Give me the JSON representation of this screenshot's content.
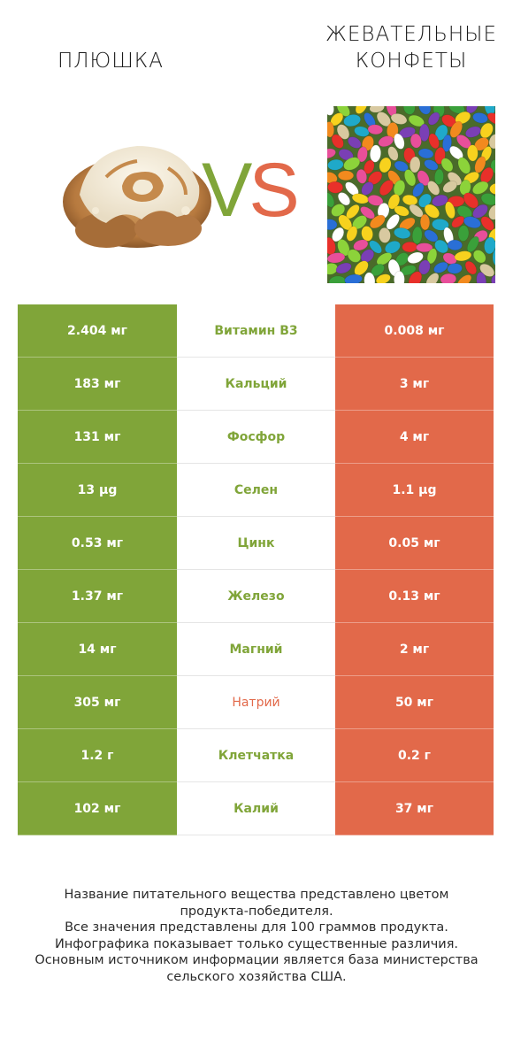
{
  "header": {
    "left_title": "ПЛЮШКА",
    "right_title_line1": "ЖЕВАТЕЛЬНЫЕ",
    "right_title_line2": "КОНФЕТЫ",
    "vs_v": "V",
    "vs_s": "S"
  },
  "colors": {
    "winner_left": "#80a539",
    "winner_right": "#e2694a"
  },
  "chart_data": {
    "type": "table",
    "columns": [
      "ПЛЮШКА",
      "",
      "ЖЕВАТЕЛЬНЫЕ КОНФЕТЫ"
    ],
    "rows": [
      {
        "nutrient": "Витамин B3",
        "left": "2.404 мг",
        "right": "0.008 мг",
        "winner": "left"
      },
      {
        "nutrient": "Кальций",
        "left": "183 мг",
        "right": "3 мг",
        "winner": "left"
      },
      {
        "nutrient": "Фосфор",
        "left": "131 мг",
        "right": "4 мг",
        "winner": "left"
      },
      {
        "nutrient": "Селен",
        "left": "13 µg",
        "right": "1.1 µg",
        "winner": "left"
      },
      {
        "nutrient": "Цинк",
        "left": "0.53 мг",
        "right": "0.05 мг",
        "winner": "left"
      },
      {
        "nutrient": "Железо",
        "left": "1.37 мг",
        "right": "0.13 мг",
        "winner": "left"
      },
      {
        "nutrient": "Магний",
        "left": "14 мг",
        "right": "2 мг",
        "winner": "left"
      },
      {
        "nutrient": "Натрий",
        "left": "305 мг",
        "right": "50 мг",
        "winner": "right"
      },
      {
        "nutrient": "Клетчатка",
        "left": "1.2 г",
        "right": "0.2 г",
        "winner": "left"
      },
      {
        "nutrient": "Калий",
        "left": "102 мг",
        "right": "37 мг",
        "winner": "left"
      }
    ]
  },
  "footnote": {
    "line1": "Название питательного вещества представлено цветом",
    "line2": "продукта-победителя.",
    "line3": "Все значения представлены для 100 граммов продукта.",
    "line4": "Инфографика показывает только существенные различия.",
    "line5": "Основным источником информации является база министерства",
    "line6": "сельского хозяйства США."
  }
}
